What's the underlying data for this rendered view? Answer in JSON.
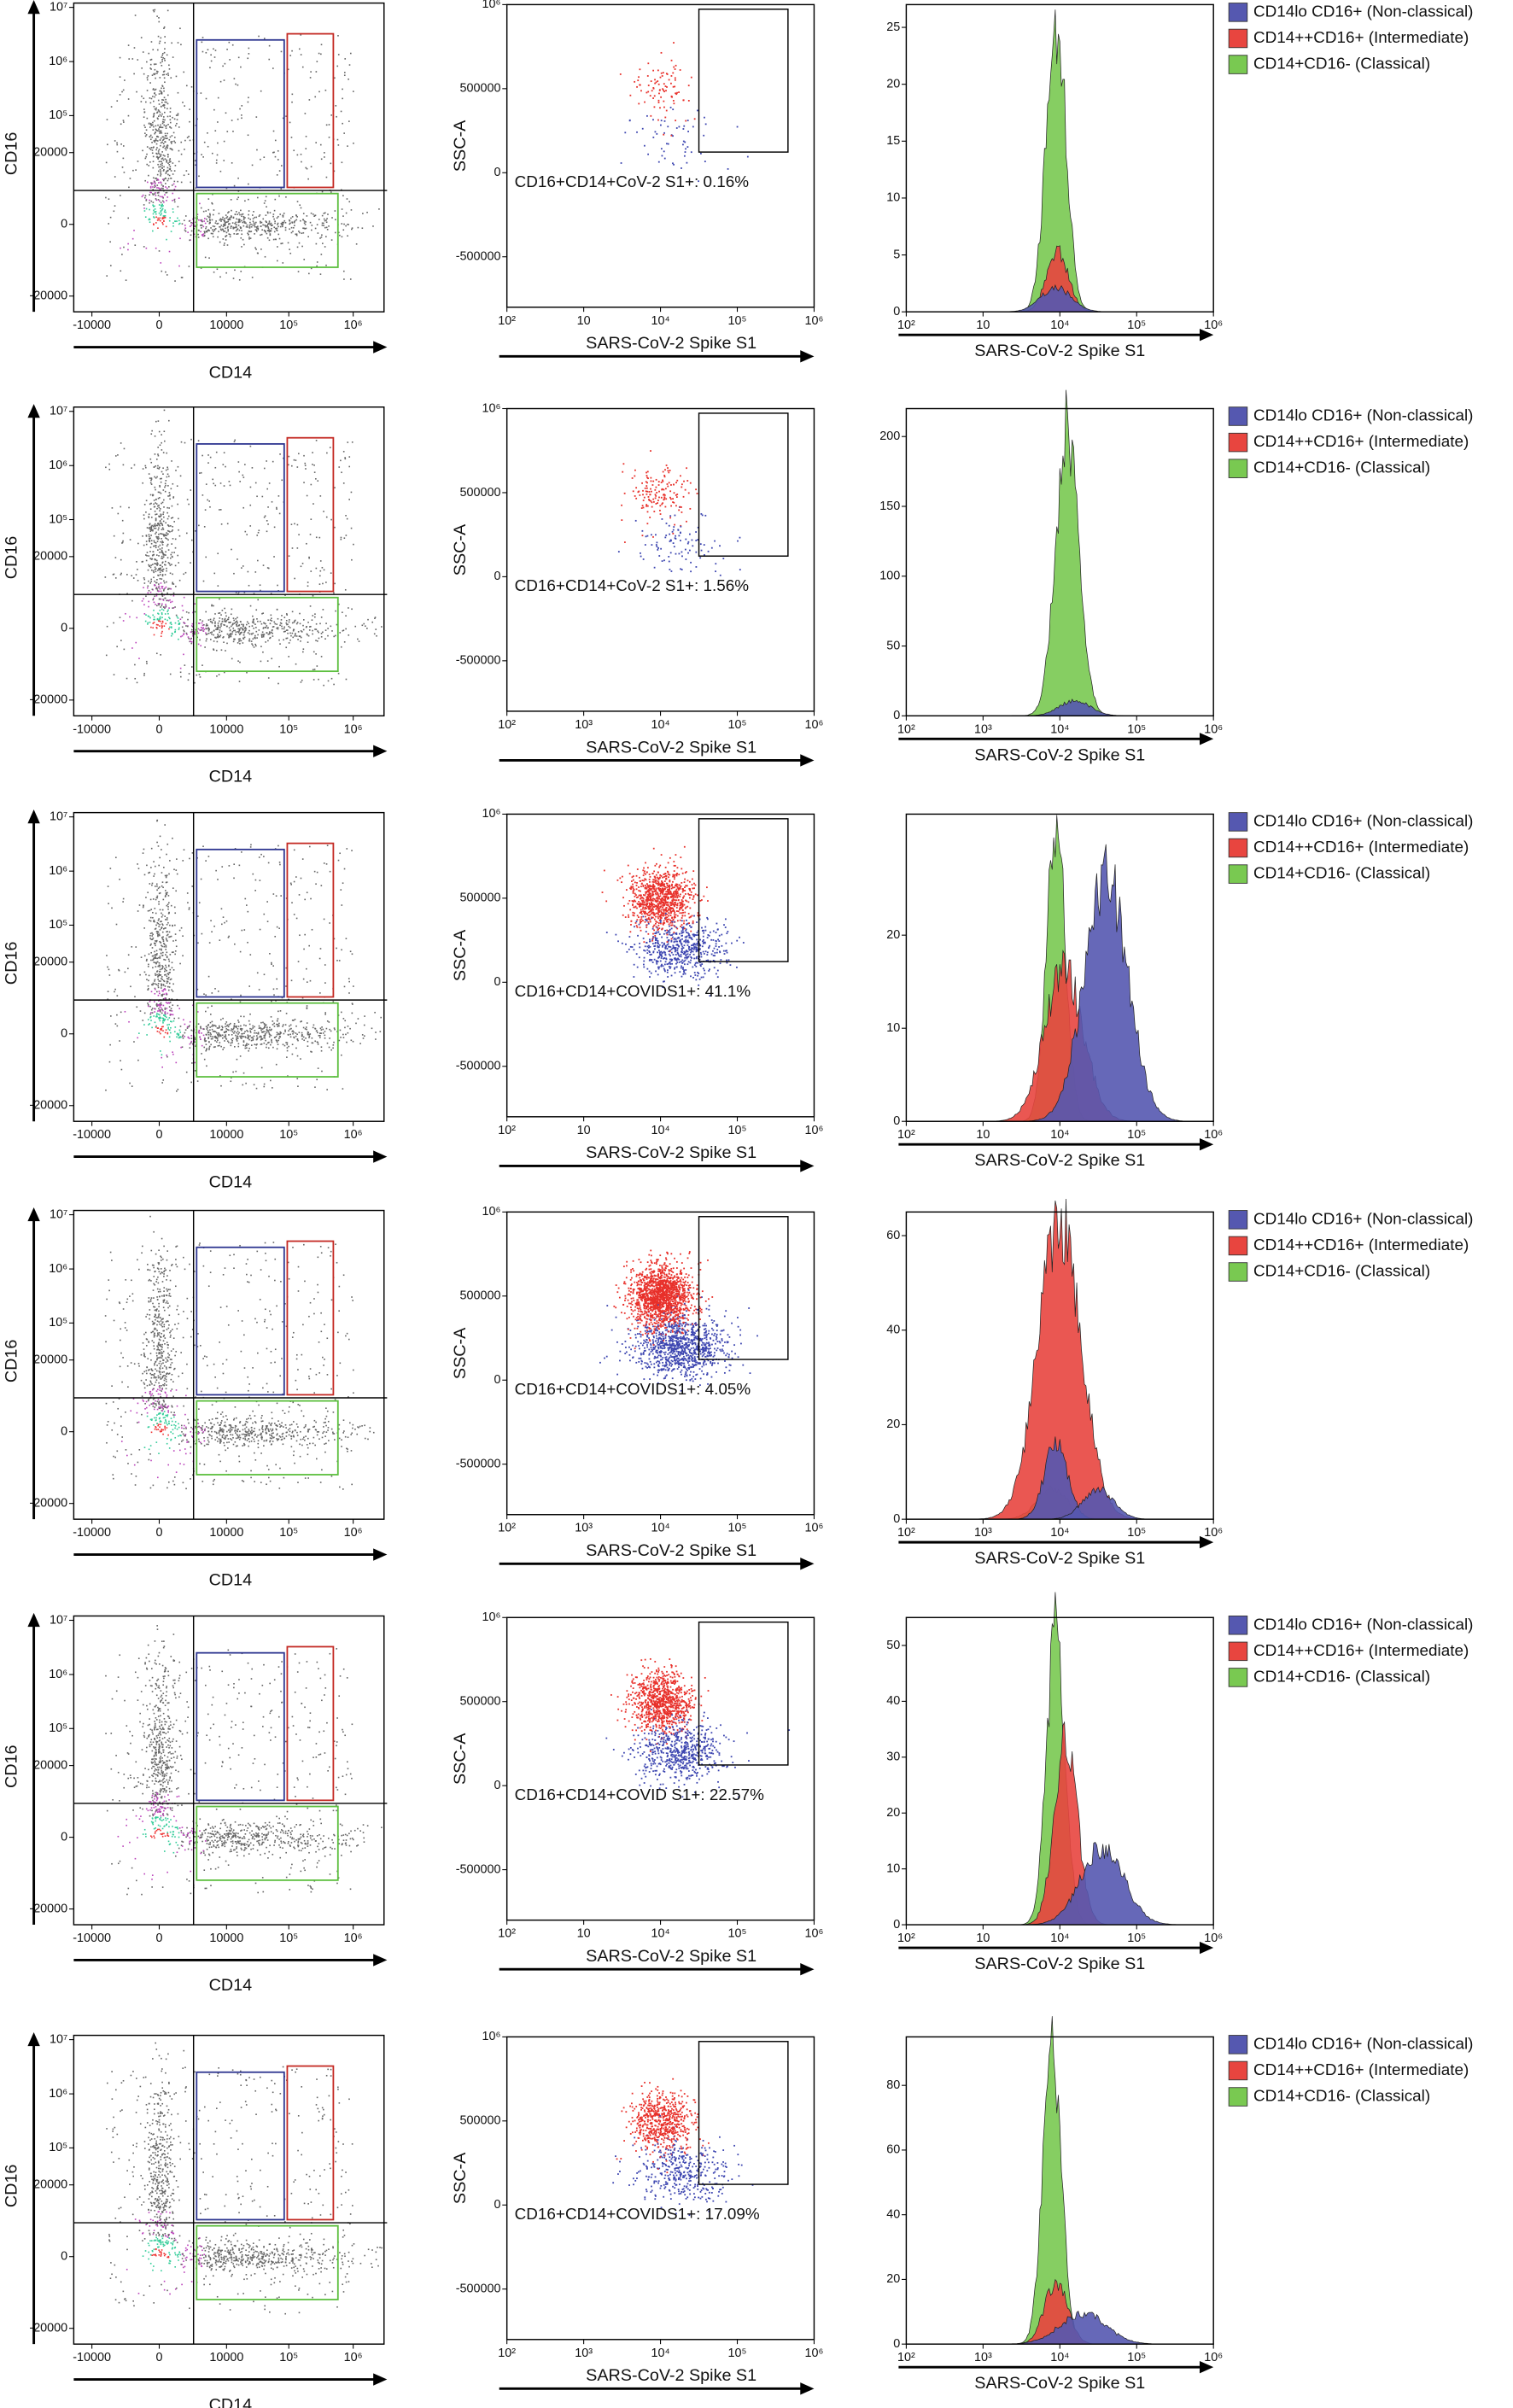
{
  "chart_data": [
    {
      "type": "density",
      "xlabel": "CD14",
      "ylabel": "CD16",
      "xlim": [
        -20000,
        3000000
      ],
      "ylim": [
        -40000,
        12000000
      ],
      "xticks": [
        -10000,
        0,
        10000,
        {
          "value": 100000,
          "label": "10⁵"
        },
        {
          "value": 1000000,
          "label": "10⁶"
        }
      ],
      "yticks": [
        -20000,
        0,
        20000,
        {
          "value": 100000,
          "label": "10⁵"
        },
        {
          "value": 1000000,
          "label": "10⁶"
        },
        {
          "value": 10000000,
          "label": "10⁷"
        }
      ]
    },
    {
      "type": "scatter",
      "xlabel": "SARS-CoV-2 Spike S1",
      "ylabel": "SSC-A",
      "xscale": "log",
      "xlim": [
        100,
        1000000
      ],
      "xticks": [
        {
          "value": 100,
          "label": "10²"
        },
        {
          "value": 1000,
          "label": "10"
        },
        {
          "value": 10000,
          "label": "10⁴"
        },
        {
          "value": 100000,
          "label": "10⁵"
        },
        {
          "value": 1000000,
          "label": "10⁶"
        }
      ],
      "ylim": [
        -800000,
        1000000
      ],
      "yticks": [
        -500000,
        0,
        500000,
        {
          "value": 1000000,
          "label": "10⁶"
        }
      ],
      "annotation": "CD16+CD14+CoV-2 S1+: 0.16%"
    },
    {
      "type": "histogram",
      "xlabel": "SARS-CoV-2 Spike S1",
      "xscale": "log",
      "xlim": [
        100,
        1000000
      ],
      "xticks": [
        {
          "value": 100,
          "label": "10²"
        },
        {
          "value": 1000,
          "label": "10"
        },
        {
          "value": 10000,
          "label": "10⁴"
        },
        {
          "value": 100000,
          "label": "10⁵"
        },
        {
          "value": 1000000,
          "label": "10⁶"
        }
      ],
      "ylim": [
        0,
        27
      ],
      "yticks": [
        0,
        5,
        10,
        15,
        20,
        25
      ],
      "series": [
        {
          "name": "CD14lo CD16+ (Non-classical)",
          "color": "#5558b0"
        },
        {
          "name": "CD14++CD16+ (Intermediate)",
          "color": "#e8453f"
        },
        {
          "name": "CD14+CD16- (Classical)",
          "color": "#79c951"
        }
      ]
    },
    {
      "type": "density",
      "xlabel": "CD14",
      "ylabel": "CD16",
      "xlim": [
        -20000,
        3000000
      ],
      "ylim": [
        -40000,
        12000000
      ],
      "xticks": [
        -10000,
        0,
        10000,
        {
          "value": 100000,
          "label": "10⁵"
        },
        {
          "value": 1000000,
          "label": "10⁶"
        }
      ],
      "yticks": [
        -20000,
        0,
        20000,
        {
          "value": 100000,
          "label": "10⁵"
        },
        {
          "value": 1000000,
          "label": "10⁶"
        },
        {
          "value": 10000000,
          "label": "10⁷"
        }
      ]
    },
    {
      "type": "scatter",
      "xlabel": "SARS-CoV-2 Spike S1",
      "ylabel": "SSC-A",
      "xscale": "log",
      "xlim": [
        100,
        1000000
      ],
      "xticks": [
        {
          "value": 100,
          "label": "10²"
        },
        {
          "value": 1000,
          "label": "10³"
        },
        {
          "value": 10000,
          "label": "10⁴"
        },
        {
          "value": 100000,
          "label": "10⁵"
        },
        {
          "value": 1000000,
          "label": "10⁶"
        }
      ],
      "ylim": [
        -800000,
        1000000
      ],
      "yticks": [
        -500000,
        0,
        500000,
        {
          "value": 1000000,
          "label": "10⁶"
        }
      ],
      "annotation": "CD16+CD14+CoV-2 S1+: 1.56%"
    },
    {
      "type": "histogram",
      "xlabel": "SARS-CoV-2 Spike S1",
      "xscale": "log",
      "xlim": [
        100,
        1000000
      ],
      "xticks": [
        {
          "value": 100,
          "label": "10²"
        },
        {
          "value": 1000,
          "label": "10³"
        },
        {
          "value": 10000,
          "label": "10⁴"
        },
        {
          "value": 100000,
          "label": "10⁵"
        },
        {
          "value": 1000000,
          "label": "10⁶"
        }
      ],
      "ylim": [
        0,
        220
      ],
      "yticks": [
        0,
        50,
        100,
        150,
        200
      ],
      "series": [
        {
          "name": "CD14lo CD16+ (Non-classical)",
          "color": "#5558b0"
        },
        {
          "name": "CD14++CD16+ (Intermediate)",
          "color": "#e8453f"
        },
        {
          "name": "CD14+CD16- (Classical)",
          "color": "#79c951"
        }
      ]
    },
    {
      "type": "density",
      "xlabel": "CD14",
      "ylabel": "CD16",
      "xlim": [
        -20000,
        3000000
      ],
      "ylim": [
        -40000,
        12000000
      ],
      "xticks": [
        -10000,
        0,
        10000,
        {
          "value": 100000,
          "label": "10⁵"
        },
        {
          "value": 1000000,
          "label": "10⁶"
        }
      ],
      "yticks": [
        -20000,
        0,
        20000,
        {
          "value": 100000,
          "label": "10⁵"
        },
        {
          "value": 1000000,
          "label": "10⁶"
        },
        {
          "value": 10000000,
          "label": "10⁷"
        }
      ]
    },
    {
      "type": "scatter",
      "xlabel": "SARS-CoV-2 Spike S1",
      "ylabel": "SSC-A",
      "xscale": "log",
      "xlim": [
        100,
        1000000
      ],
      "xticks": [
        {
          "value": 100,
          "label": "10²"
        },
        {
          "value": 1000,
          "label": "10"
        },
        {
          "value": 10000,
          "label": "10⁴"
        },
        {
          "value": 100000,
          "label": "10⁵"
        },
        {
          "value": 1000000,
          "label": "10⁶"
        }
      ],
      "ylim": [
        -800000,
        1000000
      ],
      "yticks": [
        -500000,
        0,
        500000,
        {
          "value": 1000000,
          "label": "10⁶"
        }
      ],
      "annotation": "CD16+CD14+COVIDS1+: 41.1%"
    },
    {
      "type": "histogram",
      "xlabel": "SARS-CoV-2 Spike S1",
      "xscale": "log",
      "xlim": [
        100,
        1000000
      ],
      "xticks": [
        {
          "value": 100,
          "label": "10²"
        },
        {
          "value": 1000,
          "label": "10"
        },
        {
          "value": 10000,
          "label": "10⁴"
        },
        {
          "value": 100000,
          "label": "10⁵"
        },
        {
          "value": 1000000,
          "label": "10⁶"
        }
      ],
      "ylim": [
        0,
        33
      ],
      "yticks": [
        0,
        10,
        20
      ],
      "series": [
        {
          "name": "CD14lo CD16+ (Non-classical)",
          "color": "#5558b0"
        },
        {
          "name": "CD14++CD16+ (Intermediate)",
          "color": "#e8453f"
        },
        {
          "name": "CD14+CD16- (Classical)",
          "color": "#79c951"
        }
      ]
    },
    {
      "type": "density",
      "xlabel": "CD14",
      "ylabel": "CD16",
      "xlim": [
        -20000,
        3000000
      ],
      "ylim": [
        -40000,
        12000000
      ],
      "xticks": [
        -10000,
        0,
        10000,
        {
          "value": 100000,
          "label": "10⁵"
        },
        {
          "value": 1000000,
          "label": "10⁶"
        }
      ],
      "yticks": [
        -20000,
        0,
        20000,
        {
          "value": 100000,
          "label": "10⁵"
        },
        {
          "value": 1000000,
          "label": "10⁶"
        },
        {
          "value": 10000000,
          "label": "10⁷"
        }
      ]
    },
    {
      "type": "scatter",
      "xlabel": "SARS-CoV-2 Spike S1",
      "ylabel": "SSC-A",
      "xscale": "log",
      "xlim": [
        100,
        1000000
      ],
      "xticks": [
        {
          "value": 100,
          "label": "10²"
        },
        {
          "value": 1000,
          "label": "10³"
        },
        {
          "value": 10000,
          "label": "10⁴"
        },
        {
          "value": 100000,
          "label": "10⁵"
        },
        {
          "value": 1000000,
          "label": "10⁶"
        }
      ],
      "ylim": [
        -800000,
        1000000
      ],
      "yticks": [
        -500000,
        0,
        500000,
        {
          "value": 1000000,
          "label": "10⁶"
        }
      ],
      "annotation": "CD16+CD14+COVIDS1+: 4.05%"
    },
    {
      "type": "histogram",
      "xlabel": "SARS-CoV-2 Spike S1",
      "xscale": "log",
      "xlim": [
        100,
        1000000
      ],
      "xticks": [
        {
          "value": 100,
          "label": "10²"
        },
        {
          "value": 1000,
          "label": "10³"
        },
        {
          "value": 10000,
          "label": "10⁴"
        },
        {
          "value": 100000,
          "label": "10⁵"
        },
        {
          "value": 1000000,
          "label": "10⁶"
        }
      ],
      "ylim": [
        0,
        65
      ],
      "yticks": [
        0,
        20,
        40,
        60
      ],
      "series": [
        {
          "name": "CD14lo CD16+ (Non-classical)",
          "color": "#5558b0"
        },
        {
          "name": "CD14++CD16+ (Intermediate)",
          "color": "#e8453f"
        },
        {
          "name": "CD14+CD16- (Classical)",
          "color": "#79c951"
        }
      ]
    },
    {
      "type": "density",
      "xlabel": "CD14",
      "ylabel": "CD16",
      "xlim": [
        -20000,
        3000000
      ],
      "ylim": [
        -40000,
        12000000
      ],
      "xticks": [
        -10000,
        0,
        10000,
        {
          "value": 100000,
          "label": "10⁵"
        },
        {
          "value": 1000000,
          "label": "10⁶"
        }
      ],
      "yticks": [
        -20000,
        0,
        20000,
        {
          "value": 100000,
          "label": "10⁵"
        },
        {
          "value": 1000000,
          "label": "10⁶"
        },
        {
          "value": 10000000,
          "label": "10⁷"
        }
      ]
    },
    {
      "type": "scatter",
      "xlabel": "SARS-CoV-2 Spike S1",
      "ylabel": "SSC-A",
      "xscale": "log",
      "xlim": [
        100,
        1000000
      ],
      "xticks": [
        {
          "value": 100,
          "label": "10²"
        },
        {
          "value": 1000,
          "label": "10"
        },
        {
          "value": 10000,
          "label": "10⁴"
        },
        {
          "value": 100000,
          "label": "10⁵"
        },
        {
          "value": 1000000,
          "label": "10⁶"
        }
      ],
      "ylim": [
        -800000,
        1000000
      ],
      "yticks": [
        -500000,
        0,
        500000,
        {
          "value": 1000000,
          "label": "10⁶"
        }
      ],
      "annotation": "CD16+CD14+COVID S1+: 22.57%"
    },
    {
      "type": "histogram",
      "xlabel": "SARS-CoV-2 Spike S1",
      "xscale": "log",
      "xlim": [
        100,
        1000000
      ],
      "xticks": [
        {
          "value": 100,
          "label": "10²"
        },
        {
          "value": 1000,
          "label": "10"
        },
        {
          "value": 10000,
          "label": "10⁴"
        },
        {
          "value": 100000,
          "label": "10⁵"
        },
        {
          "value": 1000000,
          "label": "10⁶"
        }
      ],
      "ylim": [
        0,
        55
      ],
      "yticks": [
        0,
        10,
        20,
        30,
        40,
        50
      ],
      "series": [
        {
          "name": "CD14lo CD16+ (Non-classical)",
          "color": "#5558b0"
        },
        {
          "name": "CD14++CD16+ (Intermediate)",
          "color": "#e8453f"
        },
        {
          "name": "CD14+CD16- (Classical)",
          "color": "#79c951"
        }
      ]
    },
    {
      "type": "density",
      "xlabel": "CD14",
      "ylabel": "CD16",
      "xlim": [
        -20000,
        3000000
      ],
      "ylim": [
        -40000,
        12000000
      ],
      "xticks": [
        -10000,
        0,
        10000,
        {
          "value": 100000,
          "label": "10⁵"
        },
        {
          "value": 1000000,
          "label": "10⁶"
        }
      ],
      "yticks": [
        -20000,
        0,
        20000,
        {
          "value": 100000,
          "label": "10⁵"
        },
        {
          "value": 1000000,
          "label": "10⁶"
        },
        {
          "value": 10000000,
          "label": "10⁷"
        }
      ]
    },
    {
      "type": "scatter",
      "xlabel": "SARS-CoV-2 Spike S1",
      "ylabel": "SSC-A",
      "xscale": "log",
      "xlim": [
        100,
        1000000
      ],
      "xticks": [
        {
          "value": 100,
          "label": "10²"
        },
        {
          "value": 1000,
          "label": "10³"
        },
        {
          "value": 10000,
          "label": "10⁴"
        },
        {
          "value": 100000,
          "label": "10⁵"
        },
        {
          "value": 1000000,
          "label": "10⁶"
        }
      ],
      "ylim": [
        -800000,
        1000000
      ],
      "yticks": [
        -500000,
        0,
        500000,
        {
          "value": 1000000,
          "label": "10⁶"
        }
      ],
      "annotation": "CD16+CD14+COVIDS1+: 17.09%"
    },
    {
      "type": "histogram",
      "xlabel": "SARS-CoV-2 Spike S1",
      "xscale": "log",
      "xlim": [
        100,
        1000000
      ],
      "xticks": [
        {
          "value": 100,
          "label": "10²"
        },
        {
          "value": 1000,
          "label": "10³"
        },
        {
          "value": 10000,
          "label": "10⁴"
        },
        {
          "value": 100000,
          "label": "10⁵"
        },
        {
          "value": 1000000,
          "label": "10⁶"
        }
      ],
      "ylim": [
        0,
        95
      ],
      "yticks": [
        0,
        20,
        40,
        60,
        80
      ],
      "series": [
        {
          "name": "CD14lo CD16+ (Non-classical)",
          "color": "#5558b0"
        },
        {
          "name": "CD14++CD16+ (Intermediate)",
          "color": "#e8453f"
        },
        {
          "name": "CD14+CD16- (Classical)",
          "color": "#79c951"
        }
      ]
    }
  ]
}
